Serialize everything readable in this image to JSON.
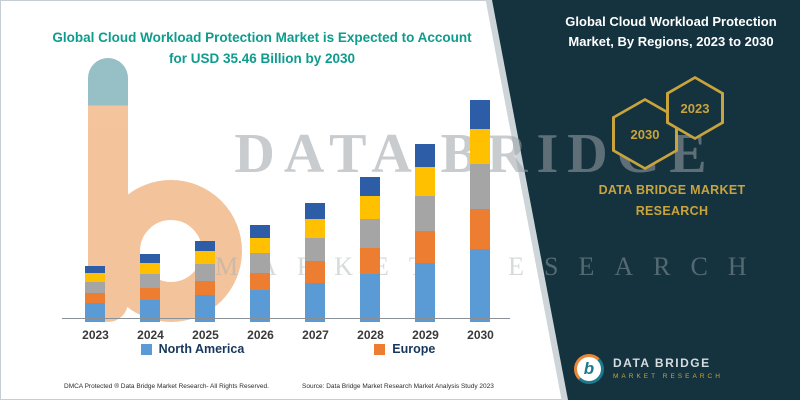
{
  "left": {
    "title_line1": "Global Cloud Workload Protection Market is Expected to Account",
    "title_line2": "for USD 35.46 Billion by 2030",
    "footer_left": "DMCA Protected ® Data Bridge Market Research-  All Rights Reserved.",
    "footer_source": "Source: Data Bridge Market Research  Market Analysis Study 2023"
  },
  "chart_data": {
    "type": "bar",
    "stacked": true,
    "title": "Global Cloud Workload Protection Market is Expected to Account for USD 35.46 Billion by 2030",
    "categories": [
      "2023",
      "2024",
      "2025",
      "2026",
      "2027",
      "2028",
      "2029",
      "2030"
    ],
    "series": [
      {
        "name": "North America",
        "color": "#5B9BD5",
        "values": [
          3.0,
          3.6,
          4.3,
          5.1,
          6.3,
          7.7,
          9.4,
          11.7
        ]
      },
      {
        "name": "Europe",
        "color": "#ED7D31",
        "values": [
          1.6,
          1.9,
          2.3,
          2.8,
          3.4,
          4.2,
          5.1,
          6.4
        ]
      },
      {
        "name": "",
        "color": "#A5A5A5",
        "values": [
          1.8,
          2.2,
          2.6,
          3.1,
          3.8,
          4.6,
          5.7,
          7.1
        ]
      },
      {
        "name": "",
        "color": "#FFC000",
        "values": [
          1.4,
          1.7,
          2.1,
          2.5,
          3.0,
          3.7,
          4.6,
          5.7
        ]
      },
      {
        "name": "",
        "color": "#2E5DA8",
        "values": [
          1.2,
          1.4,
          1.7,
          2.0,
          2.5,
          3.0,
          3.7,
          4.6
        ]
      }
    ],
    "legend": [
      {
        "label": "North America",
        "color": "#5B9BD5"
      },
      {
        "label": "Europe",
        "color": "#ED7D31"
      }
    ],
    "legend_position": "bottom",
    "grid": false,
    "xlabel": "",
    "ylabel": "",
    "ylim": [
      0,
      36
    ],
    "total_2030_billion_usd": 35.46
  },
  "right": {
    "title": "Global Cloud Workload Protection Market, By Regions, 2023 to 2030",
    "hex_left": "2030",
    "hex_right": "2023",
    "brand_line1": "DATA BRIDGE MARKET",
    "brand_line2": "RESEARCH",
    "logo_b": "b",
    "logo_text": "DATA BRIDGE",
    "logo_sub": "MARKET RESEARCH"
  },
  "watermark": {
    "line1": "DATA BRIDGE",
    "line2": "MARKET RESEARCH"
  },
  "colors": {
    "title_teal": "#0E9C8D",
    "panel_dark": "#15323F",
    "gold": "#C9A43C",
    "legend_text": "#17365d"
  }
}
